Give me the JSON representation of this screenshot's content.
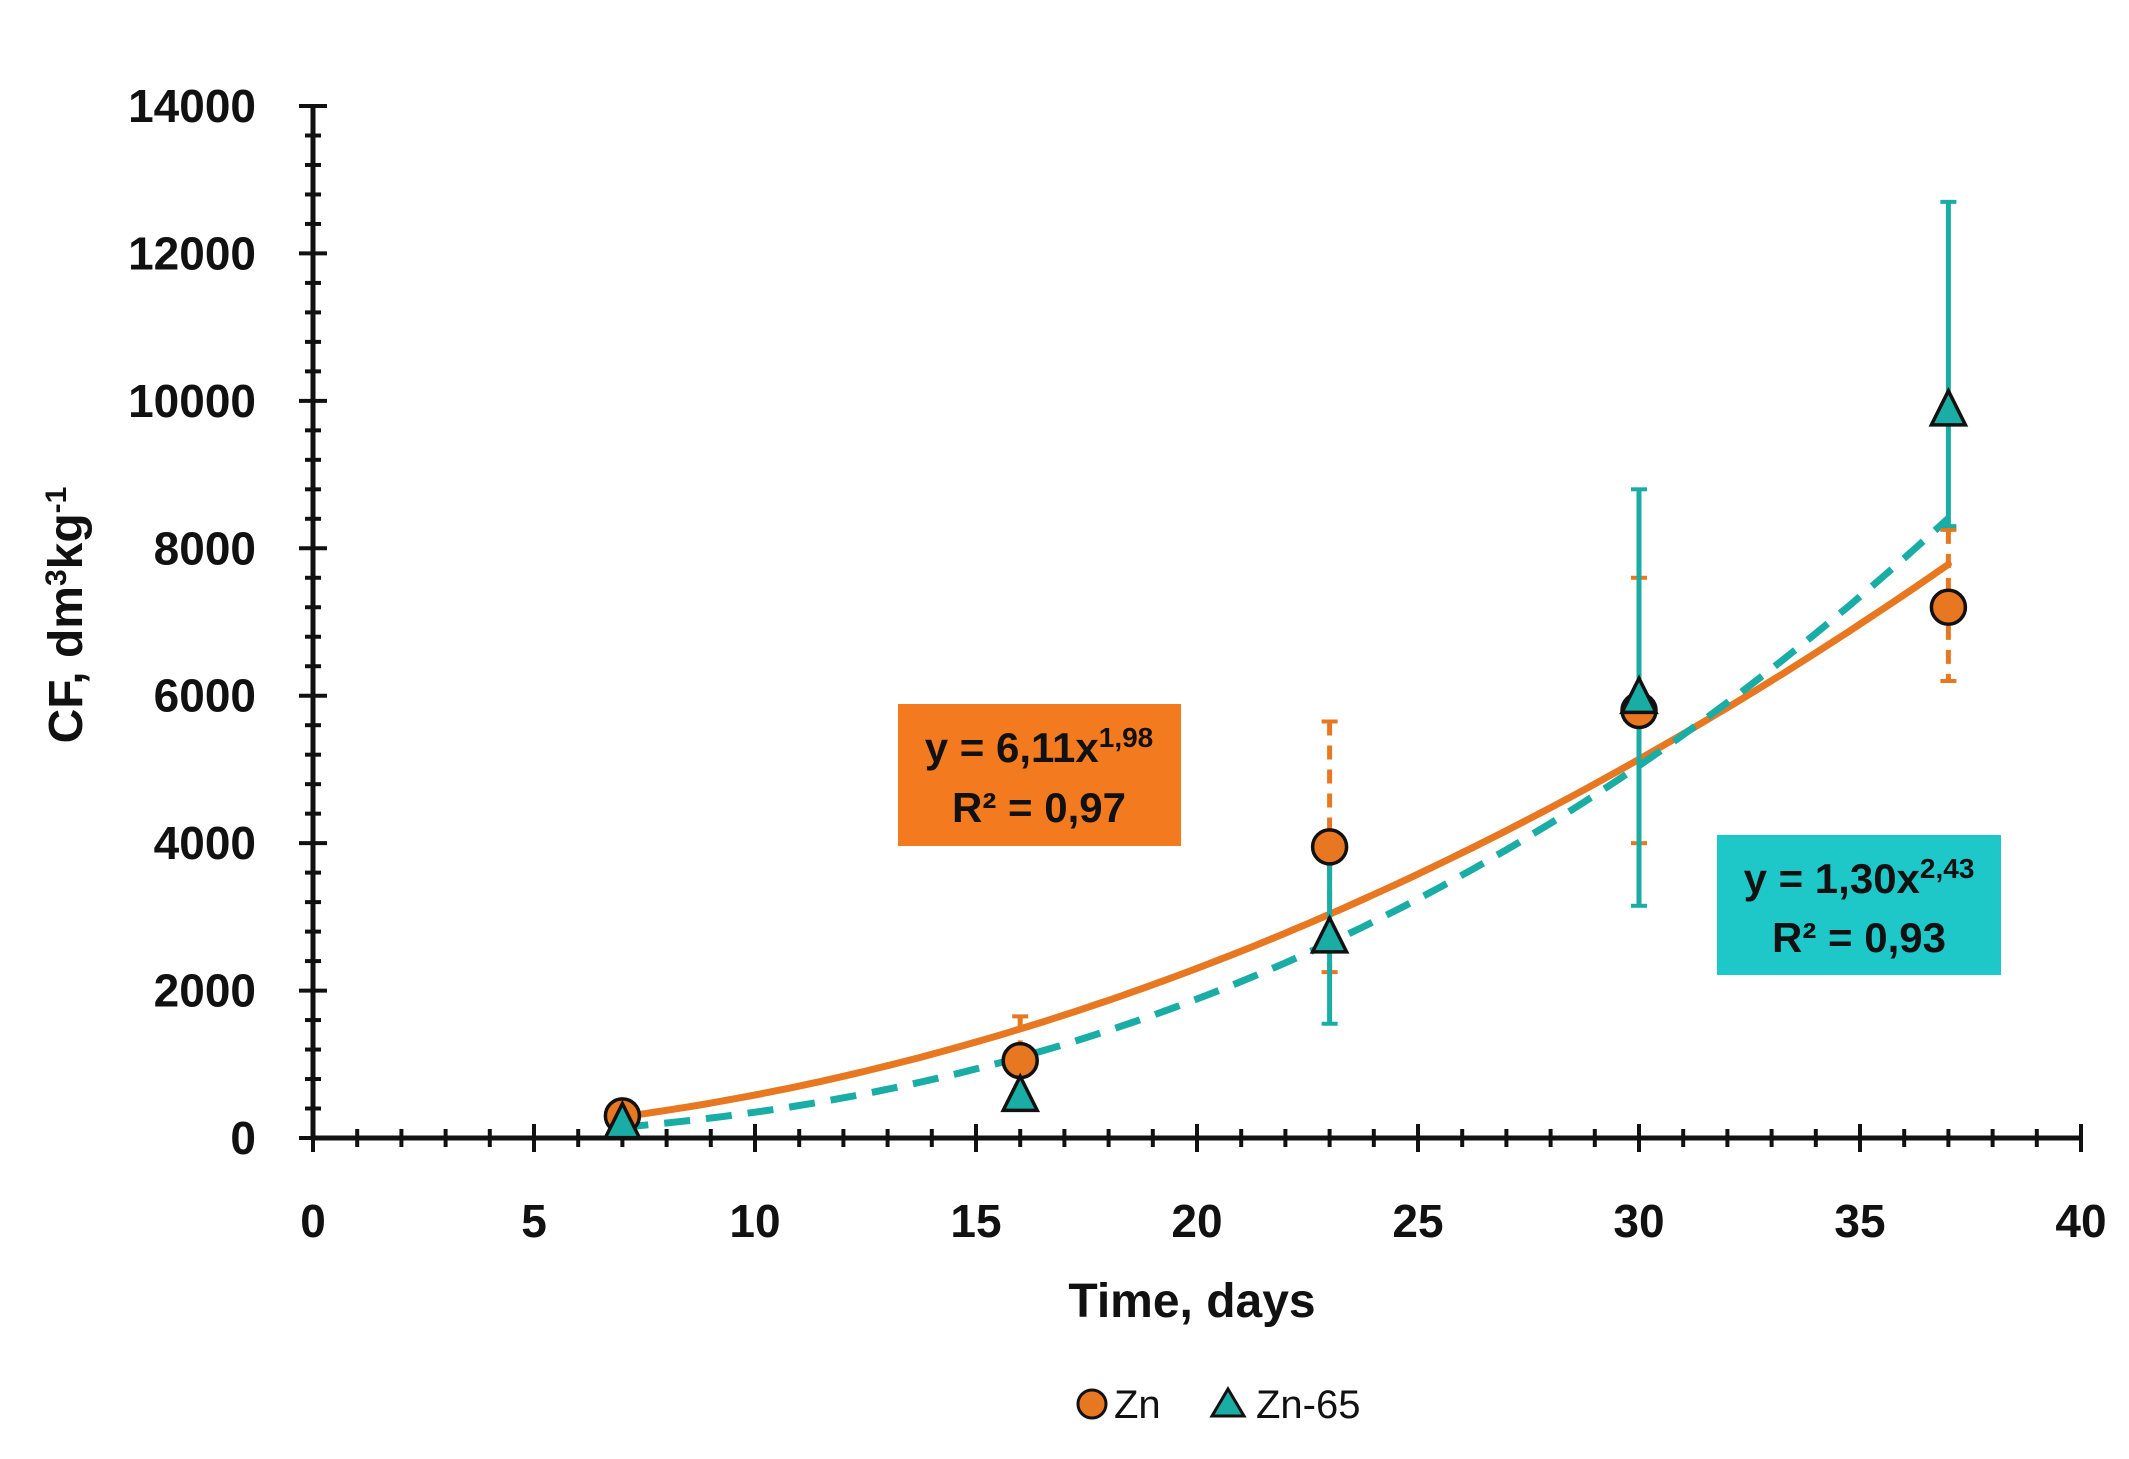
{
  "chart_data": {
    "type": "scatter",
    "title": "",
    "xlabel": "Time, days",
    "ylabel_parts": {
      "prefix": "CF,  dm",
      "sup1": "3",
      "mid": "kg",
      "sup2": "-1"
    },
    "xlim": [
      0,
      40
    ],
    "ylim": [
      0,
      14000
    ],
    "x_ticks": [
      0,
      5,
      10,
      15,
      20,
      25,
      30,
      35,
      40
    ],
    "x_tick_labels": [
      "0",
      "5",
      "10",
      "15",
      "20",
      "25",
      "30",
      "35",
      "40"
    ],
    "y_ticks": [
      0,
      2000,
      4000,
      6000,
      8000,
      10000,
      12000,
      14000
    ],
    "y_tick_labels": [
      "0",
      "2000",
      "4000",
      "6000",
      "8000",
      "10000",
      "12000",
      "14000"
    ],
    "grid": false,
    "legend_position": "bottom-center",
    "series": [
      {
        "name": "Zn",
        "marker": "circle",
        "color": "#E87722",
        "x": [
          7,
          16,
          23,
          30,
          37
        ],
        "y": [
          300,
          1050,
          3950,
          5800,
          7200
        ],
        "err_low": [
          0,
          400,
          1700,
          1800,
          1000
        ],
        "err_high": [
          0,
          600,
          1700,
          1800,
          1050
        ],
        "trendline": {
          "kind": "power",
          "a": 6.11,
          "b": 1.98,
          "style": "solid",
          "color": "#E87722",
          "equation_label": {
            "prefix": "y = 6,11x",
            "exponent": "1,98",
            "r2": "R² = 0,97"
          },
          "label_bg": "#F47A1F"
        }
      },
      {
        "name": "Zn-65",
        "marker": "triangle",
        "color": "#1AADA6",
        "x": [
          7,
          16,
          23,
          30,
          37
        ],
        "y": [
          180,
          550,
          2700,
          5950,
          9850
        ],
        "err_low": [
          0,
          0,
          1150,
          2800,
          1550
        ],
        "err_high": [
          0,
          0,
          1150,
          2850,
          2850
        ],
        "trendline": {
          "kind": "power",
          "a": 1.3,
          "b": 2.43,
          "style": "dashed",
          "color": "#1AADA6",
          "equation_label": {
            "prefix": "y = 1,30x",
            "exponent": "2,43",
            "r2": "R² = 0,93"
          },
          "label_bg": "#1FC8C8"
        }
      }
    ]
  }
}
